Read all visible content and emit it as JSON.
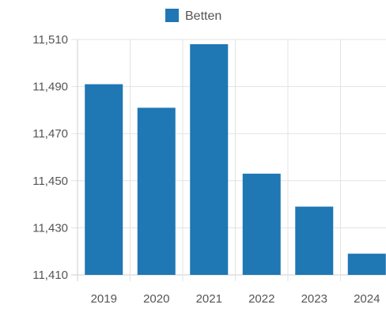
{
  "chart_data": {
    "type": "bar",
    "categories": [
      "2019",
      "2020",
      "2021",
      "2022",
      "2023",
      "2024"
    ],
    "series": [
      {
        "name": "Betten",
        "values": [
          11491,
          11481,
          11508,
          11453,
          11439,
          11419
        ],
        "color": "#1f77b4"
      }
    ],
    "ylim": [
      11410,
      11510
    ],
    "yticks": [
      11410,
      11430,
      11450,
      11470,
      11490,
      11510
    ],
    "ytick_labels": [
      "11,410",
      "11,430",
      "11,450",
      "11,470",
      "11,490",
      "11,510"
    ],
    "grid": true,
    "legend_position": "top-center"
  },
  "style": {
    "grid_color": "#e3e3e3",
    "axis_color": "#cfcfcf",
    "text_color": "#555555"
  }
}
